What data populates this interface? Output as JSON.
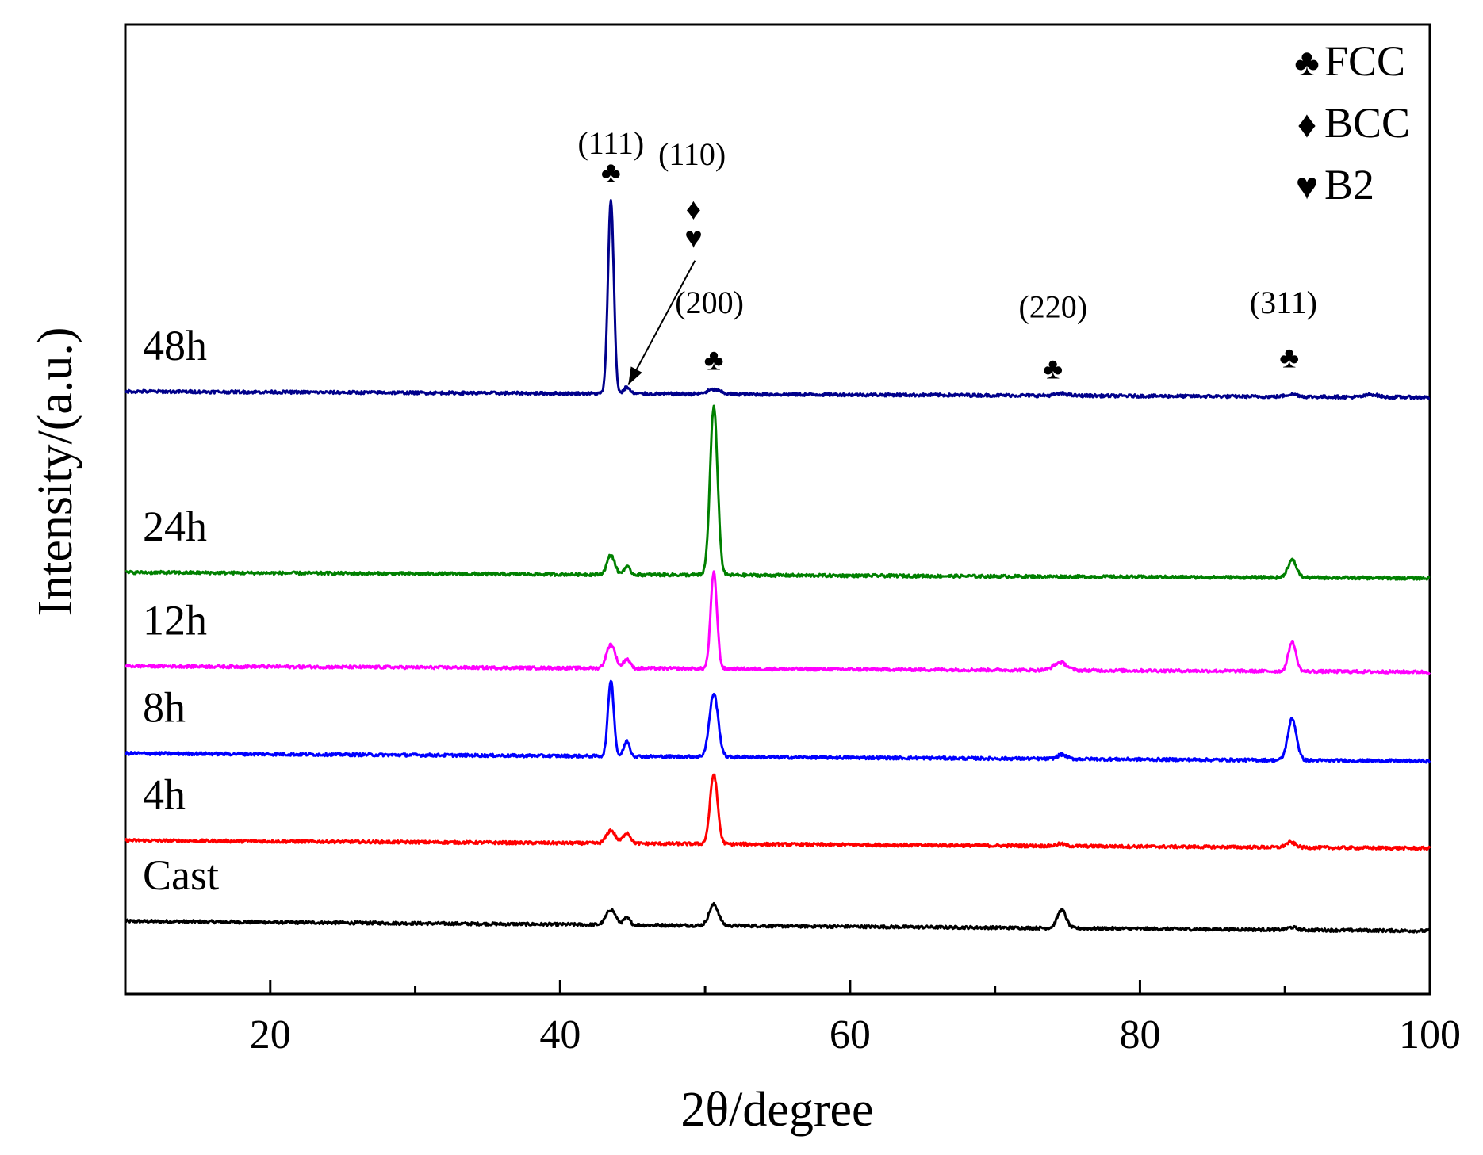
{
  "chart_data": {
    "type": "line",
    "title": "",
    "xlabel": "2θ/degree",
    "ylabel": "Intensity/(a.u.)",
    "xlim": [
      10,
      100
    ],
    "x_ticks": [
      "20",
      "40",
      "60",
      "80",
      "100"
    ],
    "y_ticks_shown": false,
    "grid": false,
    "offset_stacked": true,
    "series": [
      {
        "name": "Cast",
        "color": "#000000",
        "baseline": 0,
        "slope": -0.025,
        "peaks": [
          [
            43.5,
            0.35,
            0.32
          ],
          [
            44.6,
            0.16,
            0.22
          ],
          [
            50.6,
            0.48,
            0.32
          ],
          [
            74.6,
            0.42,
            0.3
          ],
          [
            90.5,
            0.06,
            0.3
          ]
        ]
      },
      {
        "name": "4h",
        "color": "#ff0000",
        "baseline": 1.85,
        "slope": -0.02,
        "peaks": [
          [
            43.5,
            0.3,
            0.3
          ],
          [
            44.6,
            0.25,
            0.25
          ],
          [
            50.6,
            1.6,
            0.26
          ],
          [
            74.5,
            0.05,
            0.3
          ],
          [
            90.4,
            0.12,
            0.32
          ]
        ]
      },
      {
        "name": "8h",
        "color": "#0000ff",
        "baseline": 3.85,
        "slope": -0.02,
        "peaks": [
          [
            43.5,
            1.75,
            0.2
          ],
          [
            44.6,
            0.35,
            0.2
          ],
          [
            50.6,
            1.45,
            0.3
          ],
          [
            74.6,
            0.1,
            0.3
          ],
          [
            90.5,
            0.95,
            0.3
          ]
        ]
      },
      {
        "name": "12h",
        "color": "#ff00ff",
        "baseline": 5.85,
        "slope": -0.015,
        "peaks": [
          [
            43.5,
            0.55,
            0.3
          ],
          [
            44.6,
            0.22,
            0.22
          ],
          [
            50.6,
            2.2,
            0.22
          ],
          [
            74.5,
            0.18,
            0.45
          ],
          [
            90.5,
            0.68,
            0.26
          ]
        ]
      },
      {
        "name": "24h",
        "color": "#008000",
        "baseline": 8.0,
        "slope": -0.015,
        "peaks": [
          [
            43.5,
            0.45,
            0.26
          ],
          [
            44.6,
            0.18,
            0.22
          ],
          [
            50.6,
            3.85,
            0.26
          ],
          [
            90.5,
            0.4,
            0.3
          ]
        ]
      },
      {
        "name": "48h",
        "color": "#00008b",
        "baseline": 12.15,
        "slope": -0.015,
        "peaks": [
          [
            43.5,
            4.45,
            0.2
          ],
          [
            44.6,
            0.15,
            0.2
          ],
          [
            50.6,
            0.1,
            0.45
          ],
          [
            74.6,
            0.05,
            0.4
          ],
          [
            90.5,
            0.06,
            0.4
          ],
          [
            96,
            0.06,
            0.4
          ]
        ]
      }
    ],
    "annotations": [
      {
        "text": "(111)",
        "x": 43.5,
        "y": 17.6,
        "kind": "plane"
      },
      {
        "text": "♣",
        "x": 43.5,
        "y": 16.95,
        "kind": "marker"
      },
      {
        "text": "(110)",
        "x": 49.1,
        "y": 17.35,
        "kind": "plane"
      },
      {
        "text": "♦",
        "x": 49.2,
        "y": 16.1,
        "kind": "marker"
      },
      {
        "text": "♥",
        "x": 49.2,
        "y": 15.45,
        "kind": "marker"
      },
      {
        "text": "(200)",
        "x": 50.3,
        "y": 13.95,
        "kind": "plane"
      },
      {
        "text": "♣",
        "x": 50.6,
        "y": 12.65,
        "kind": "marker"
      },
      {
        "text": "(220)",
        "x": 74.0,
        "y": 13.85,
        "kind": "plane"
      },
      {
        "text": "♣",
        "x": 74.0,
        "y": 12.45,
        "kind": "marker"
      },
      {
        "text": "(311)",
        "x": 89.9,
        "y": 13.95,
        "kind": "plane"
      },
      {
        "text": "♣",
        "x": 90.3,
        "y": 12.7,
        "kind": "marker"
      }
    ],
    "arrow": {
      "from": [
        49.3,
        15.15
      ],
      "to": [
        44.7,
        12.3
      ]
    },
    "legend": {
      "position": "top-right",
      "entries": [
        {
          "symbol": "♣",
          "label": "FCC"
        },
        {
          "symbol": "♦",
          "label": "BCC"
        },
        {
          "symbol": "♥",
          "label": "B2"
        }
      ]
    }
  }
}
